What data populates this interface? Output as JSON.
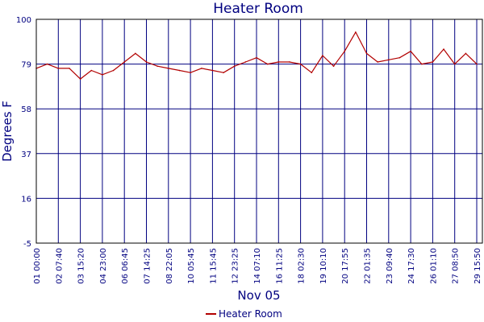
{
  "chart_data": {
    "type": "line",
    "title": "Heater Room",
    "xlabel": "Nov 05",
    "ylabel": "Degrees F",
    "ylim": [
      -5,
      100
    ],
    "yticks": [
      -5,
      16,
      37,
      58,
      79,
      100
    ],
    "xticks": [
      "01 00:00",
      "02 07:40",
      "03 15:20",
      "04 23:00",
      "06 06:45",
      "07 14:25",
      "08 22:05",
      "10 05:45",
      "11 15:45",
      "12 23:25",
      "14 07:10",
      "16 11:25",
      "18 02:30",
      "19 10:10",
      "20 17:55",
      "22 01:35",
      "23 09:40",
      "24 17:30",
      "26 01:10",
      "27 08:50",
      "29 15:50"
    ],
    "grid": true,
    "legend_position": "bottom",
    "series": [
      {
        "name": "Heater Room",
        "color": "#b20000",
        "x": [
          0,
          0.5,
          1,
          1.5,
          2,
          2.5,
          3,
          3.5,
          4,
          4.5,
          5,
          5.5,
          6,
          6.5,
          7,
          7.5,
          8,
          8.5,
          9,
          9.5,
          10,
          10.5,
          11,
          11.5,
          12,
          12.5,
          13,
          13.5,
          14,
          14.5,
          15,
          15.5,
          16,
          16.5,
          17,
          17.5,
          18,
          18.5,
          19,
          19.5,
          20
        ],
        "values": [
          77,
          79,
          77,
          77,
          72,
          76,
          74,
          76,
          80,
          84,
          80,
          78,
          77,
          76,
          75,
          77,
          76,
          75,
          78,
          80,
          82,
          79,
          80,
          80,
          79,
          75,
          83,
          78,
          85,
          94,
          84,
          80,
          81,
          82,
          85,
          79,
          80,
          86,
          79,
          84,
          79
        ]
      }
    ]
  }
}
